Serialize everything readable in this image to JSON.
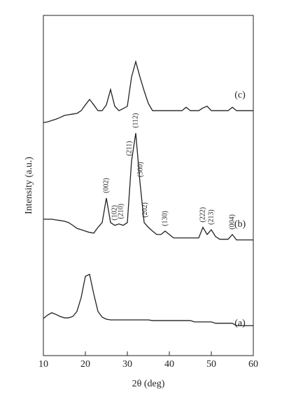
{
  "chart_data": {
    "type": "line",
    "xlabel": "2θ (deg)",
    "ylabel": "Intensity (a.u.)",
    "xlim": [
      10,
      60
    ],
    "xticks": [
      10,
      20,
      30,
      40,
      50,
      60
    ],
    "ylim": [
      0,
      100
    ],
    "x": [
      10,
      11,
      12,
      13,
      14,
      15,
      16,
      17,
      18,
      19,
      20,
      21,
      22,
      23,
      24,
      25,
      26,
      27,
      28,
      29,
      30,
      31,
      32,
      33,
      34,
      35,
      36,
      37,
      38,
      39,
      40,
      41,
      42,
      43,
      44,
      45,
      46,
      47,
      48,
      49,
      50,
      51,
      52,
      53,
      54,
      55,
      56,
      57,
      58,
      59,
      60
    ],
    "series": [
      {
        "name": "(a)",
        "color": "#222222",
        "values": [
          10.9,
          11.9,
          12.6,
          12.1,
          11.5,
          11.1,
          11.1,
          11.5,
          13,
          17.1,
          23.3,
          23.9,
          18.1,
          13,
          11.3,
          10.7,
          10.5,
          10.5,
          10.5,
          10.5,
          10.5,
          10.5,
          10.5,
          10.5,
          10.5,
          10.5,
          10.3,
          10.3,
          10.3,
          10.3,
          10.3,
          10.3,
          10.3,
          10.3,
          10.3,
          10.3,
          9.9,
          9.9,
          9.9,
          9.9,
          9.9,
          9.5,
          9.5,
          9.5,
          9.5,
          9.5,
          8.8,
          8.8,
          8.8,
          8.8,
          8.8
        ]
      },
      {
        "name": "(b)",
        "color": "#222222",
        "values": [
          40.1,
          40.1,
          40.1,
          39.9,
          39.7,
          39.5,
          39.1,
          38.3,
          37.4,
          37.0,
          36.6,
          36.2,
          36.0,
          37.7,
          39.1,
          46.3,
          39.1,
          38.3,
          38.7,
          38.3,
          39.1,
          57.2,
          65.4,
          51.0,
          39.1,
          37.7,
          36.6,
          35.6,
          35.6,
          36.6,
          35.6,
          34.6,
          34.6,
          34.6,
          34.6,
          34.6,
          34.6,
          34.6,
          37.7,
          35.6,
          37.0,
          35.0,
          34.2,
          34.2,
          34.2,
          35.6,
          34.0,
          34.0,
          34.0,
          34.0,
          34.0
        ]
      },
      {
        "name": "(c)",
        "color": "#222222",
        "values": [
          68.5,
          68.7,
          69.1,
          69.5,
          70.0,
          70.6,
          70.8,
          71.0,
          71.2,
          72.0,
          73.7,
          75.3,
          73.7,
          72.0,
          72.0,
          73.7,
          78.2,
          73.3,
          72.0,
          72.6,
          73.3,
          81.9,
          86.4,
          81.9,
          77.8,
          74.1,
          72.0,
          72.0,
          72.0,
          72.0,
          72.0,
          72.0,
          72.0,
          72.0,
          73.0,
          72.0,
          72.0,
          72.0,
          72.8,
          73.3,
          72.0,
          72.0,
          72.0,
          72.0,
          72.0,
          73.0,
          72.0,
          72.0,
          72.0,
          72.0,
          72.0
        ]
      }
    ],
    "annotations": [
      {
        "label": "(002)",
        "x": 25
      },
      {
        "label": "(102)",
        "x": 27
      },
      {
        "label": "(210)",
        "x": 28.5
      },
      {
        "label": "(211)",
        "x": 30.5
      },
      {
        "label": "(112)",
        "x": 32
      },
      {
        "label": "(300)",
        "x": 33.2
      },
      {
        "label": "(202)",
        "x": 34.3
      },
      {
        "label": "(130)",
        "x": 39
      },
      {
        "label": "(222)",
        "x": 48
      },
      {
        "label": "(213)",
        "x": 50
      },
      {
        "label": "(004)",
        "x": 55
      }
    ]
  }
}
